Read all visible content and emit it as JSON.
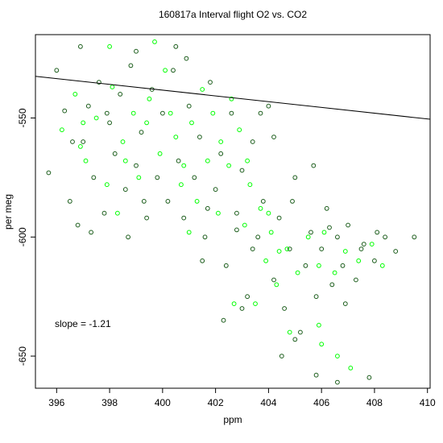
{
  "chart_data": {
    "type": "scatter",
    "title": "160817a   Interval flight O2 vs. CO2",
    "xlabel": "ppm",
    "ylabel": "per meg",
    "xlim": [
      395.2,
      410.1
    ],
    "ylim": [
      -663.5,
      -515
    ],
    "x_ticks": [
      396,
      398,
      400,
      402,
      404,
      406,
      408,
      410
    ],
    "y_ticks": [
      -550,
      -600,
      -650
    ],
    "grid": false,
    "legend": "none",
    "fit_line": {
      "slope": -1.21,
      "x0": 395.2,
      "y0": -532.5
    },
    "annotation": "slope =  -1.21",
    "colors": {
      "dark_points": "#1a5c1a",
      "bright_points": "#00ff00",
      "fit_line": "#000000"
    },
    "series": [
      {
        "color": "#1a5c1a",
        "points": [
          [
            395.7,
            -573
          ],
          [
            396.0,
            -530
          ],
          [
            396.3,
            -547
          ],
          [
            396.5,
            -585
          ],
          [
            396.9,
            -520
          ],
          [
            396.8,
            -595
          ],
          [
            397.0,
            -560
          ],
          [
            397.2,
            -545
          ],
          [
            397.4,
            -575
          ],
          [
            397.6,
            -535
          ],
          [
            397.8,
            -590
          ],
          [
            398.0,
            -552
          ],
          [
            398.2,
            -565
          ],
          [
            398.4,
            -540
          ],
          [
            398.6,
            -580
          ],
          [
            398.8,
            -528
          ],
          [
            399.0,
            -570
          ],
          [
            399.2,
            -556
          ],
          [
            399.4,
            -592
          ],
          [
            399.6,
            -538
          ],
          [
            399.8,
            -575
          ],
          [
            400.0,
            -548
          ],
          [
            400.2,
            -585
          ],
          [
            400.4,
            -530
          ],
          [
            400.6,
            -568
          ],
          [
            400.8,
            -592
          ],
          [
            401.0,
            -545
          ],
          [
            401.2,
            -575
          ],
          [
            401.4,
            -558
          ],
          [
            401.6,
            -600
          ],
          [
            401.8,
            -535
          ],
          [
            402.0,
            -580
          ],
          [
            402.2,
            -565
          ],
          [
            402.4,
            -612
          ],
          [
            402.6,
            -548
          ],
          [
            402.8,
            -590
          ],
          [
            403.0,
            -572
          ],
          [
            403.2,
            -625
          ],
          [
            403.4,
            -560
          ],
          [
            403.6,
            -600
          ],
          [
            403.8,
            -585
          ],
          [
            404.0,
            -545
          ],
          [
            404.2,
            -618
          ],
          [
            404.4,
            -592
          ],
          [
            404.6,
            -630
          ],
          [
            404.8,
            -605
          ],
          [
            405.0,
            -575
          ],
          [
            405.2,
            -640
          ],
          [
            405.4,
            -612
          ],
          [
            405.6,
            -598
          ],
          [
            405.8,
            -625
          ],
          [
            406.0,
            -605
          ],
          [
            406.2,
            -588
          ],
          [
            406.4,
            -620
          ],
          [
            406.6,
            -600
          ],
          [
            406.8,
            -612
          ],
          [
            407.0,
            -595
          ],
          [
            407.3,
            -618
          ],
          [
            407.6,
            -603
          ],
          [
            408.0,
            -610
          ],
          [
            408.4,
            -600
          ],
          [
            408.8,
            -606
          ],
          [
            409.5,
            -600
          ],
          [
            405.8,
            -658
          ],
          [
            406.6,
            -661
          ],
          [
            407.8,
            -659
          ],
          [
            404.5,
            -650
          ],
          [
            405.0,
            -643
          ],
          [
            403.0,
            -630
          ],
          [
            402.3,
            -635
          ],
          [
            401.5,
            -610
          ],
          [
            400.5,
            -520
          ],
          [
            399.0,
            -522
          ],
          [
            397.3,
            -598
          ],
          [
            398.7,
            -600
          ],
          [
            402.8,
            -597
          ],
          [
            404.2,
            -558
          ],
          [
            403.7,
            -548
          ],
          [
            396.6,
            -560
          ],
          [
            397.9,
            -548
          ],
          [
            399.3,
            -585
          ],
          [
            400.9,
            -525
          ],
          [
            401.7,
            -588
          ],
          [
            403.4,
            -605
          ],
          [
            404.9,
            -585
          ],
          [
            405.7,
            -570
          ],
          [
            406.3,
            -596
          ],
          [
            407.5,
            -605
          ],
          [
            408.1,
            -598
          ],
          [
            406.9,
            -628
          ]
        ]
      },
      {
        "color": "#00ff00",
        "points": [
          [
            396.2,
            -555
          ],
          [
            396.7,
            -540
          ],
          [
            397.1,
            -568
          ],
          [
            397.5,
            -550
          ],
          [
            397.9,
            -578
          ],
          [
            398.1,
            -537
          ],
          [
            398.5,
            -560
          ],
          [
            398.9,
            -548
          ],
          [
            399.1,
            -575
          ],
          [
            399.5,
            -542
          ],
          [
            399.9,
            -565
          ],
          [
            400.1,
            -530
          ],
          [
            400.5,
            -558
          ],
          [
            400.7,
            -578
          ],
          [
            401.1,
            -552
          ],
          [
            401.3,
            -585
          ],
          [
            401.7,
            -568
          ],
          [
            401.9,
            -548
          ],
          [
            402.1,
            -590
          ],
          [
            402.5,
            -570
          ],
          [
            402.9,
            -555
          ],
          [
            403.1,
            -595
          ],
          [
            403.3,
            -578
          ],
          [
            403.7,
            -588
          ],
          [
            403.9,
            -610
          ],
          [
            404.1,
            -598
          ],
          [
            404.3,
            -620
          ],
          [
            404.7,
            -605
          ],
          [
            405.1,
            -615
          ],
          [
            405.5,
            -600
          ],
          [
            405.9,
            -612
          ],
          [
            406.1,
            -598
          ],
          [
            406.5,
            -615
          ],
          [
            406.9,
            -606
          ],
          [
            407.4,
            -610
          ],
          [
            407.9,
            -603
          ],
          [
            408.3,
            -612
          ],
          [
            405.9,
            -637
          ],
          [
            406.0,
            -645
          ],
          [
            406.6,
            -650
          ],
          [
            407.1,
            -655
          ],
          [
            404.8,
            -640
          ],
          [
            403.5,
            -628
          ],
          [
            402.7,
            -628
          ],
          [
            398.0,
            -520
          ],
          [
            399.7,
            -518
          ],
          [
            400.3,
            -548
          ],
          [
            398.3,
            -590
          ],
          [
            397.0,
            -552
          ],
          [
            401.5,
            -538
          ],
          [
            402.2,
            -560
          ],
          [
            403.2,
            -568
          ],
          [
            404.0,
            -590
          ],
          [
            400.8,
            -570
          ],
          [
            399.4,
            -552
          ],
          [
            398.6,
            -568
          ],
          [
            396.9,
            -562
          ],
          [
            402.6,
            -542
          ],
          [
            401.0,
            -598
          ],
          [
            404.4,
            -606
          ]
        ]
      }
    ]
  }
}
